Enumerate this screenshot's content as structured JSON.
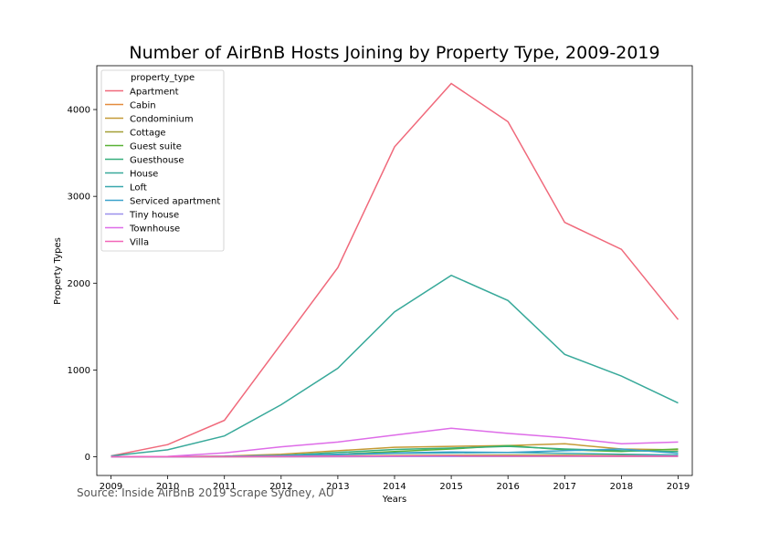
{
  "source_note": "Source: Inside AirBnB 2019 Scrape Sydney, AU",
  "chart_data": {
    "type": "line",
    "title": "Number of AirBnB Hosts Joining by Property Type, 2009-2019",
    "xlabel": "Years",
    "ylabel": "Property Types",
    "xlim": [
      2008.75,
      2019.25
    ],
    "ylim": [
      -215,
      4505
    ],
    "x": [
      2009,
      2010,
      2011,
      2012,
      2013,
      2014,
      2015,
      2016,
      2017,
      2018,
      2019
    ],
    "xticks": [
      2009,
      2010,
      2011,
      2012,
      2013,
      2014,
      2015,
      2016,
      2017,
      2018,
      2019
    ],
    "yticks": [
      0,
      1000,
      2000,
      3000,
      4000
    ],
    "grid": false,
    "legend": {
      "title": "property_type",
      "placement": "top-left"
    },
    "series": [
      {
        "name": "Apartment",
        "color": "#f0697b",
        "values": [
          10,
          140,
          420,
          1300,
          2180,
          3570,
          4300,
          3860,
          2700,
          2390,
          1580
        ]
      },
      {
        "name": "Cabin",
        "color": "#e38b3d",
        "values": [
          0,
          0,
          0,
          1,
          2,
          3,
          4,
          4,
          5,
          4,
          3
        ]
      },
      {
        "name": "Condominium",
        "color": "#c49a35",
        "values": [
          0,
          2,
          8,
          30,
          70,
          110,
          120,
          130,
          150,
          90,
          80
        ]
      },
      {
        "name": "Cottage",
        "color": "#a39f35",
        "values": [
          0,
          0,
          2,
          5,
          10,
          15,
          18,
          20,
          18,
          15,
          12
        ]
      },
      {
        "name": "Guest suite",
        "color": "#59b134",
        "values": [
          0,
          0,
          2,
          10,
          30,
          60,
          90,
          130,
          80,
          60,
          90
        ]
      },
      {
        "name": "Guesthouse",
        "color": "#36ae7c",
        "values": [
          0,
          0,
          3,
          15,
          50,
          85,
          100,
          120,
          90,
          70,
          60
        ]
      },
      {
        "name": "House",
        "color": "#38a99a",
        "values": [
          10,
          80,
          240,
          600,
          1020,
          1670,
          2090,
          1800,
          1180,
          930,
          620
        ]
      },
      {
        "name": "Loft",
        "color": "#38a7ad",
        "values": [
          0,
          2,
          5,
          15,
          25,
          40,
          45,
          50,
          40,
          30,
          20
        ]
      },
      {
        "name": "Serviced apartment",
        "color": "#3ba2cc",
        "values": [
          0,
          0,
          5,
          15,
          30,
          45,
          55,
          50,
          70,
          90,
          40
        ]
      },
      {
        "name": "Tiny house",
        "color": "#9b90ec",
        "values": [
          0,
          0,
          0,
          1,
          2,
          3,
          4,
          5,
          6,
          6,
          5
        ]
      },
      {
        "name": "Townhouse",
        "color": "#de6ce8",
        "values": [
          0,
          5,
          45,
          115,
          170,
          250,
          330,
          270,
          220,
          150,
          170
        ]
      },
      {
        "name": "Villa",
        "color": "#f266b8",
        "values": [
          0,
          0,
          2,
          5,
          8,
          10,
          12,
          10,
          10,
          8,
          8
        ]
      }
    ]
  }
}
